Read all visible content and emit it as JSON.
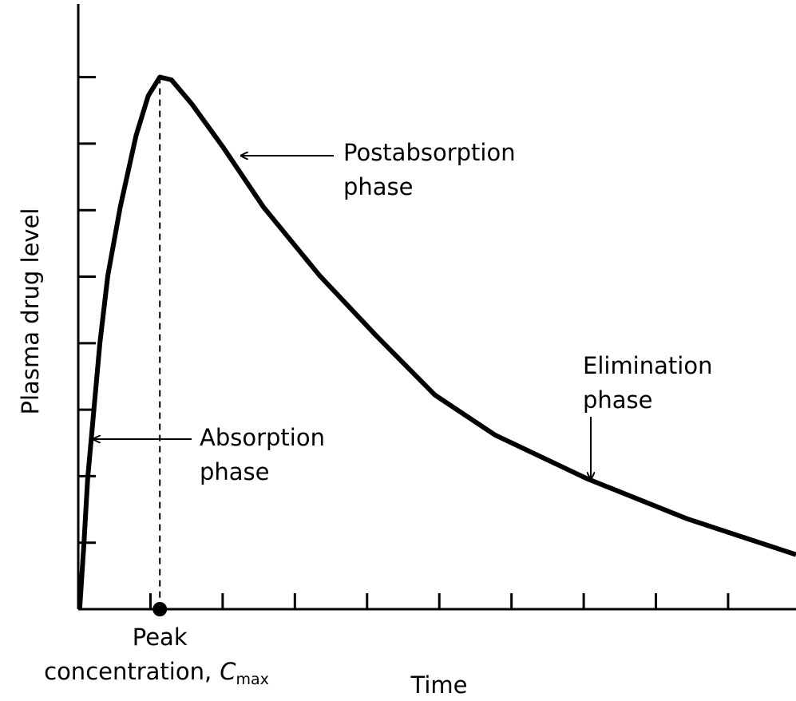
{
  "chart_data": {
    "type": "line",
    "title": null,
    "ylabel": "Plasma drug level",
    "xlabel": "Time",
    "x": [
      0.02,
      0.08,
      0.13,
      0.21,
      0.3,
      0.41,
      0.58,
      0.8,
      0.97,
      1.13,
      1.29,
      1.57,
      2.01,
      2.57,
      3.34,
      4.12,
      4.94,
      5.77,
      7.05,
      8.43,
      9.94
    ],
    "y": [
      0,
      1.0,
      1.96,
      2.92,
      4.0,
      5.02,
      6.04,
      7.12,
      7.72,
      8.0,
      7.96,
      7.6,
      6.94,
      6.04,
      5.02,
      4.12,
      3.22,
      2.62,
      1.96,
      1.36,
      0.82
    ],
    "color": "#000000",
    "xlim": [
      0,
      9.94
    ],
    "ylim": [
      0,
      9.1
    ],
    "xticks": [
      1,
      2,
      3,
      4,
      5,
      6,
      7,
      8,
      9
    ],
    "yticks": [
      1,
      2,
      3,
      4,
      5,
      6,
      7,
      8
    ],
    "peak": {
      "x": 1.13,
      "y": 8.0
    },
    "peak_label": {
      "line1": "Peak",
      "line2": "concentration,",
      "symbol": "C",
      "subscript": "max"
    },
    "annotations": [
      {
        "lines": [
          "Postabsorption",
          "phase"
        ]
      },
      {
        "lines": [
          "Absorption",
          "phase"
        ]
      },
      {
        "lines": [
          "Elimination",
          "phase"
        ]
      }
    ]
  }
}
